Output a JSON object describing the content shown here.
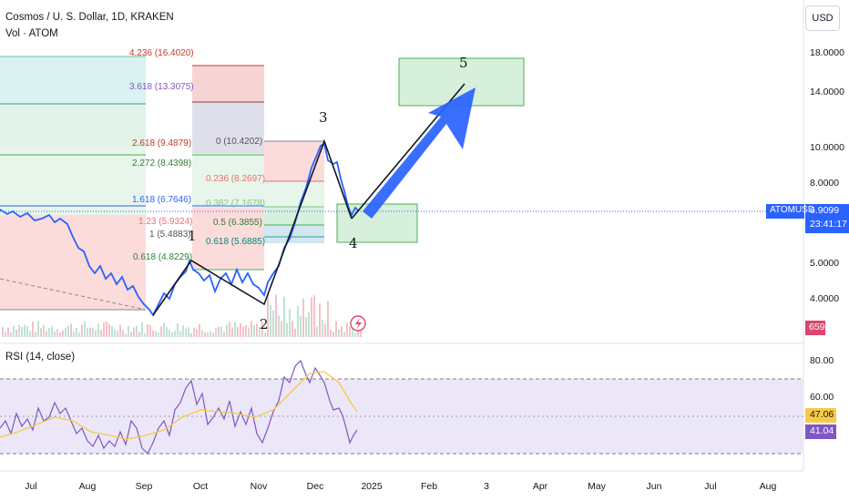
{
  "header": {
    "symbol_title": "Cosmos / U. S. Dollar, 1D, KRAKEN",
    "volume_label": "Vol · ATOM",
    "currency_button": "USD"
  },
  "price_axis": {
    "ticks": [
      "18.0000",
      "14.0000",
      "10.0000",
      "8.0000",
      "5.0000",
      "4.0000"
    ],
    "current_symbol_tag": "ATOMUSD",
    "current_price": "6.9099",
    "countdown": "23:41:17",
    "volume_tag": "659"
  },
  "rsi_panel": {
    "title": "RSI (14, close)",
    "ticks": [
      "80.00",
      "60.00"
    ],
    "ma_value": "47.06",
    "rsi_value": "41.04",
    "upper_band": 70,
    "lower_band": 30
  },
  "time_axis": {
    "labels": [
      "Jul",
      "Aug",
      "Sep",
      "Oct",
      "Nov",
      "Dec",
      "2025",
      "Feb",
      "3",
      "Apr",
      "May",
      "Jun",
      "Jul",
      "Aug"
    ]
  },
  "fib_levels": {
    "left": [
      "4.236 (16.4020)",
      "3.618 (13.3075)",
      "2.618 (9.4879)",
      "2.272 (8.4398)",
      "1.618 (6.7646)",
      "1.23 (5.9324)",
      "1 (5.4883)",
      "0.618 (4.8229)"
    ],
    "right": [
      "0 (10.4202)",
      "0.236 (8.2697)",
      "0.382 (7.1678)",
      "0.5 (6.3855)",
      "0.618 (5.6885)"
    ]
  },
  "wave_labels": [
    "1",
    "2",
    "3",
    "4",
    "5"
  ],
  "colors": {
    "price_line": "#2962ff",
    "arrow": "#2962ff",
    "bull_zone": "#d6f0dc",
    "bear_zone": "#fbd5d5",
    "rsi_band": "#ece7f8",
    "rsi_line": "#7e57c2",
    "rsi_ma": "#f7c948",
    "volume_tag": "#d9466f"
  }
}
